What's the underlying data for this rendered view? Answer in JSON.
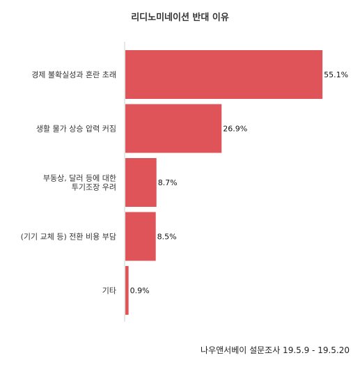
{
  "chart_data": {
    "type": "bar",
    "orientation": "horizontal",
    "title": "리디노미네이션 반대 이유",
    "categories": [
      "경제 불확실성과 혼란 초래",
      "생활 물가 상승 압력 커짐",
      "부동상, 달러 등에 대한\n투기조장 우려",
      "(기기 교체 등) 전환 비용 부담",
      "기타"
    ],
    "values": [
      55.1,
      26.9,
      8.7,
      8.5,
      0.9
    ],
    "value_labels": [
      "55.1%",
      "26.9%",
      "8.7%",
      "8.5%",
      "0.9%"
    ],
    "xlim": [
      0,
      58
    ],
    "bar_color": "#de5459",
    "grid": false,
    "legend": "none",
    "xlabel": "",
    "ylabel": ""
  },
  "source_note": "나우앤서베이 설문조사 19.5.9 - 19.5.20"
}
